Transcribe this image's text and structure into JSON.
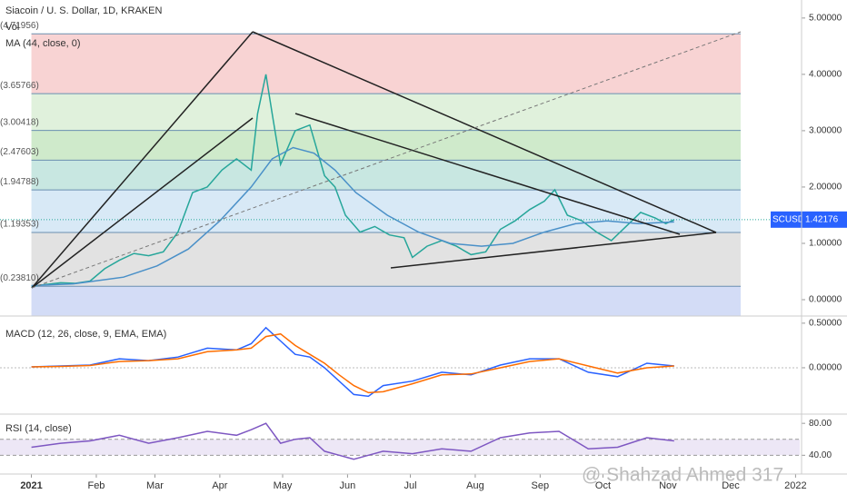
{
  "header": {
    "title": "Siacoin / U. S. Dollar, 1D, KRAKEN",
    "vol": "Vol"
  },
  "watermark": "@ Shahzad Ahmed 317",
  "chart_data": [
    {
      "type": "line",
      "legend": "MA (44, close, 0)",
      "xlim": [
        -15,
        367
      ],
      "ylim": [
        -0.29,
        5.32
      ],
      "xticks": [
        {
          "value": 0,
          "label": "2021"
        },
        {
          "value": 31,
          "label": "Feb"
        },
        {
          "value": 59,
          "label": "Mar"
        },
        {
          "value": 90,
          "label": "Apr"
        },
        {
          "value": 120,
          "label": "May"
        },
        {
          "value": 151,
          "label": "Jun"
        },
        {
          "value": 181,
          "label": "Jul"
        },
        {
          "value": 212,
          "label": "Aug"
        },
        {
          "value": 243,
          "label": "Sep"
        },
        {
          "value": 273,
          "label": "Oct"
        },
        {
          "value": 304,
          "label": "Nov"
        },
        {
          "value": 334,
          "label": "Dec"
        },
        {
          "value": 365,
          "label": "2022"
        }
      ],
      "yticks": [
        {
          "value": 0,
          "label": "0.00000"
        },
        {
          "value": 1,
          "label": "1.00000"
        },
        {
          "value": 2,
          "label": "2.00000"
        },
        {
          "value": 3,
          "label": "3.00000"
        },
        {
          "value": 4,
          "label": "4.00000"
        },
        {
          "value": 5,
          "label": "5.00000"
        }
      ],
      "fib_levels": [
        {
          "value": 4.71956,
          "label": "(4.71956)",
          "color": "#f8d3d3"
        },
        {
          "value": 3.65766,
          "label": "(3.65766)",
          "color": "#e0f1dc"
        },
        {
          "value": 3.00418,
          "label": "(3.00418)",
          "color": "#cfeacb"
        },
        {
          "value": 2.47603,
          "label": "(2.47603)",
          "color": "#c8e7e1"
        },
        {
          "value": 1.94788,
          "label": "(1.94788)",
          "color": "#d8e9f6"
        },
        {
          "value": 1.19353,
          "label": "(1.19353)",
          "color": "#e2e2e2"
        },
        {
          "value": 0.2381,
          "label": "(0.23810)",
          "color": "#d3dcf6"
        }
      ],
      "last_label": "SCUSD",
      "last_value": 1.42176,
      "last_value_label": "1.42176",
      "series": [
        {
          "color": "#26a69a",
          "x": [
            0,
            7,
            14,
            21,
            28,
            35,
            42,
            49,
            56,
            63,
            70,
            77,
            84,
            91,
            98,
            105,
            108,
            112,
            115,
            119,
            126,
            133,
            140,
            145,
            150,
            157,
            164,
            171,
            178,
            182,
            189,
            196,
            203,
            210,
            217,
            224,
            231,
            238,
            245,
            250,
            256,
            263,
            270,
            277,
            284,
            291,
            298,
            303,
            307
          ],
          "values": [
            0.24,
            0.27,
            0.3,
            0.29,
            0.33,
            0.55,
            0.7,
            0.82,
            0.78,
            0.85,
            1.2,
            1.9,
            2.0,
            2.3,
            2.5,
            2.3,
            3.3,
            4.0,
            3.3,
            2.4,
            3.0,
            3.1,
            2.2,
            2.0,
            1.5,
            1.2,
            1.3,
            1.15,
            1.1,
            0.75,
            0.95,
            1.05,
            0.95,
            0.8,
            0.85,
            1.25,
            1.4,
            1.6,
            1.75,
            1.95,
            1.5,
            1.4,
            1.2,
            1.05,
            1.3,
            1.55,
            1.45,
            1.35,
            1.42
          ]
        },
        {
          "name": "MA (44, close, 0)",
          "color": "#4a90c8",
          "x": [
            0,
            20,
            44,
            60,
            75,
            90,
            105,
            115,
            125,
            135,
            145,
            155,
            170,
            185,
            200,
            215,
            230,
            245,
            260,
            275,
            290,
            307
          ],
          "values": [
            0.25,
            0.28,
            0.4,
            0.6,
            0.9,
            1.4,
            2.0,
            2.5,
            2.7,
            2.6,
            2.3,
            1.9,
            1.5,
            1.2,
            1.0,
            0.95,
            1.0,
            1.2,
            1.35,
            1.4,
            1.35,
            1.38
          ]
        }
      ]
    },
    {
      "type": "line",
      "title": "MACD (12, 26, close, 9, EMA, EMA)",
      "xlim": [
        -15,
        367
      ],
      "ylim": [
        -0.51,
        0.56
      ],
      "yticks": [
        {
          "value": 0.5,
          "label": "0.50000"
        },
        {
          "value": 0,
          "label": "0.00000"
        }
      ],
      "series": [
        {
          "color": "#2962ff",
          "x": [
            0,
            14,
            28,
            42,
            56,
            70,
            84,
            98,
            105,
            112,
            119,
            126,
            133,
            140,
            147,
            154,
            161,
            168,
            182,
            196,
            210,
            224,
            238,
            252,
            266,
            280,
            294,
            307
          ],
          "values": [
            0.01,
            0.02,
            0.03,
            0.1,
            0.08,
            0.12,
            0.22,
            0.2,
            0.27,
            0.45,
            0.3,
            0.15,
            0.12,
            0.0,
            -0.15,
            -0.3,
            -0.32,
            -0.2,
            -0.15,
            -0.05,
            -0.08,
            0.03,
            0.1,
            0.1,
            -0.05,
            -0.1,
            0.05,
            0.02
          ]
        },
        {
          "color": "#ff6d00",
          "x": [
            0,
            14,
            28,
            42,
            56,
            70,
            84,
            98,
            105,
            112,
            119,
            126,
            133,
            140,
            147,
            154,
            161,
            168,
            182,
            196,
            210,
            224,
            238,
            252,
            266,
            280,
            294,
            307
          ],
          "values": [
            0.01,
            0.015,
            0.025,
            0.07,
            0.08,
            0.1,
            0.18,
            0.2,
            0.22,
            0.35,
            0.38,
            0.25,
            0.15,
            0.05,
            -0.08,
            -0.2,
            -0.28,
            -0.27,
            -0.18,
            -0.08,
            -0.07,
            0.0,
            0.07,
            0.1,
            0.02,
            -0.06,
            0.0,
            0.02
          ]
        }
      ]
    },
    {
      "type": "line",
      "title": "RSI (14, close)",
      "xlim": [
        -15,
        367
      ],
      "ylim": [
        16.5,
        87
      ],
      "yticks": [
        {
          "value": 80,
          "label": "80.00"
        },
        {
          "value": 40,
          "label": "40.00"
        }
      ],
      "band": [
        40,
        60
      ],
      "series": [
        {
          "color": "#7e57c2",
          "x": [
            0,
            14,
            28,
            42,
            56,
            70,
            84,
            98,
            105,
            112,
            119,
            126,
            133,
            140,
            147,
            154,
            161,
            168,
            182,
            196,
            210,
            224,
            238,
            252,
            266,
            280,
            294,
            307
          ],
          "values": [
            50,
            55,
            58,
            65,
            55,
            62,
            70,
            65,
            72,
            80,
            55,
            60,
            62,
            45,
            40,
            35,
            40,
            45,
            42,
            48,
            45,
            62,
            68,
            70,
            48,
            50,
            62,
            58
          ]
        }
      ]
    }
  ]
}
